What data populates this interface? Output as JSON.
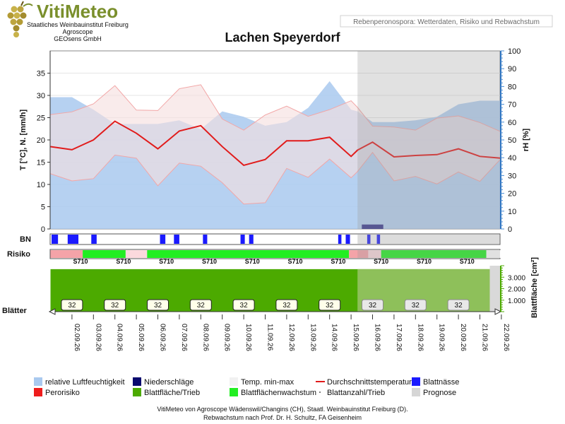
{
  "header": {
    "brand_title": "VitiMeteo",
    "brand_lines": [
      "Staatliches Weinbauinstitut Freiburg",
      "Agroscope",
      "GEOsens GmbH"
    ],
    "subtitle": "Rebenperonospora: Wetterdaten, Risiko und Rebwachstum",
    "title": "Lachen Speyerdorf"
  },
  "axes": {
    "left_label": "T [°C], N. [mm/h]",
    "right_label": "rH [%]",
    "leaf_area_label": "Blattfläche [cm²]",
    "left_ticks": [
      "0",
      "5",
      "10",
      "15",
      "20",
      "25",
      "30",
      "35"
    ],
    "right_ticks": [
      "0",
      "10",
      "20",
      "30",
      "40",
      "50",
      "60",
      "70",
      "80",
      "90",
      "100"
    ],
    "leaf_ticks": [
      "1.000",
      "2.000",
      "3.000"
    ]
  },
  "row_labels": {
    "bn": "BN",
    "risk": "Risiko",
    "leaves": "Blätter"
  },
  "legend": [
    {
      "key": "rh",
      "label": "relative Luftfeuchtigkeit",
      "color": "#a9c9ef"
    },
    {
      "key": "rain",
      "label": "Niederschläge",
      "color": "#0a0a6e"
    },
    {
      "key": "temp_range",
      "label": "Temp. min-max",
      "color": "#f1f1f1"
    },
    {
      "key": "avg_temp",
      "label": "Durchschnittstemperatur",
      "color": "#e11b1b"
    },
    {
      "key": "wetness",
      "label": "Blattnässe",
      "color": "#1a1aff"
    },
    {
      "key": "risk",
      "label": "Perorisiko",
      "color": "#ee1c1c"
    },
    {
      "key": "leaf_area",
      "label": "Blattfläche/Trieb",
      "color": "#4caa00"
    },
    {
      "key": "leaf_growth",
      "label": "Blattflächenwachstum",
      "color": "#22ee22"
    },
    {
      "key": "leaf_count",
      "label": "Blattanzahl/Trieb",
      "color": "#555555"
    },
    {
      "key": "forecast",
      "label": "Prognose",
      "color": "#d6d6d6"
    }
  ],
  "footer": [
    "VitiMeteo von Agroscope Wädenswil/Changins (CH), Staatl. Weinbauinstitut Freiburg (D).",
    "Rebwachstum nach Prof. Dr. H. Schultz, FA Geisenheim"
  ],
  "chart_data": {
    "type": "line",
    "dates": [
      "02.09.26",
      "03.09.26",
      "04.09.26",
      "05.09.26",
      "06.09.26",
      "07.09.26",
      "08.09.26",
      "09.09.26",
      "10.09.26",
      "11.09.26",
      "12.09.26",
      "13.09.26",
      "14.09.26",
      "15.09.26",
      "16.09.26",
      "17.09.26",
      "18.09.26",
      "19.09.26",
      "20.09.26",
      "21.09.26",
      "22.09.26"
    ],
    "forecast_start_day": 14.3,
    "temp_axis": {
      "min": 0,
      "max": 40
    },
    "rh_axis": {
      "min": 0,
      "max": 100
    },
    "leaf_area_axis": {
      "min": 0,
      "max": 4000
    },
    "series": [
      {
        "key": "rh",
        "name": "relative Luftfeuchtigkeit",
        "unit": "%",
        "x": [
          0,
          1,
          2,
          3,
          4,
          5,
          6,
          7,
          8,
          9,
          10,
          11,
          12,
          13,
          14,
          14.3,
          15,
          16,
          17,
          18,
          19,
          20,
          21
        ],
        "y": [
          74,
          74,
          67,
          59,
          59,
          59,
          61,
          56,
          66,
          63,
          58,
          60,
          68,
          83,
          67,
          66,
          60,
          60,
          61,
          63,
          70,
          72,
          72
        ]
      },
      {
        "key": "temp_max",
        "name": "Temp. max",
        "unit": "°C",
        "x": [
          0,
          1,
          2,
          3,
          4,
          5,
          6,
          7,
          8,
          9,
          10,
          11,
          12,
          13,
          14,
          14.3,
          15,
          16,
          17,
          18,
          19,
          20,
          21
        ],
        "y": [
          25.7,
          26.3,
          28.1,
          32.2,
          26.7,
          26.6,
          31.5,
          32.4,
          24.7,
          22.2,
          25.6,
          27.6,
          25.3,
          26.8,
          28.8,
          27.3,
          23.1,
          22.9,
          22.2,
          24.9,
          25.4,
          23.9,
          21.8
        ]
      },
      {
        "key": "temp_min",
        "name": "Temp. min",
        "unit": "°C",
        "x": [
          0,
          1,
          2,
          3,
          4,
          5,
          6,
          7,
          8,
          9,
          10,
          11,
          12,
          13,
          14,
          14.3,
          15,
          16,
          17,
          18,
          19,
          20,
          21
        ],
        "y": [
          12.4,
          10.8,
          11.3,
          16.6,
          15.9,
          9.7,
          14.8,
          14.1,
          10.4,
          5.6,
          5.9,
          13.6,
          11.6,
          15.7,
          11.5,
          12.9,
          17.2,
          10.8,
          11.8,
          10.1,
          12.8,
          10.7,
          15.9
        ]
      },
      {
        "key": "avg_temp",
        "name": "Durchschnittstemperatur",
        "unit": "°C",
        "x": [
          0,
          1,
          2,
          3,
          4,
          5,
          6,
          7,
          8,
          9,
          10,
          11,
          12,
          13,
          14,
          14.3,
          15,
          16,
          17,
          18,
          19,
          20,
          21
        ],
        "y": [
          18.5,
          17.8,
          20.0,
          24.2,
          21.5,
          18.0,
          22.0,
          23.2,
          18.5,
          14.3,
          15.6,
          19.8,
          19.8,
          20.6,
          16.3,
          17.7,
          19.5,
          16.2,
          16.5,
          16.7,
          18.0,
          16.3,
          15.9
        ]
      }
    ],
    "precipitation": {
      "unit": "mm/h",
      "bars": [
        {
          "x_start": 14.5,
          "x_end": 15.5,
          "value": 1
        }
      ]
    },
    "leaf_wetness": [
      [
        0.05,
        0.35
      ],
      [
        0.8,
        1.3
      ],
      [
        1.9,
        2.15
      ],
      [
        5.1,
        5.35
      ],
      [
        5.75,
        6.0
      ],
      [
        7.1,
        7.3
      ],
      [
        8.85,
        9.05
      ],
      [
        9.25,
        9.45
      ],
      [
        13.4,
        13.55
      ],
      [
        13.75,
        13.95
      ],
      [
        14.75,
        14.9
      ],
      [
        15.2,
        15.35
      ]
    ],
    "risk_segments": [
      {
        "start": 0,
        "end": 1.5,
        "level": "risk"
      },
      {
        "start": 1.5,
        "end": 3.5,
        "level": "growth"
      },
      {
        "start": 3.5,
        "end": 4.5,
        "level": "light-risk"
      },
      {
        "start": 4.5,
        "end": 13.9,
        "level": "growth"
      },
      {
        "start": 13.9,
        "end": 14.8,
        "level": "risk"
      },
      {
        "start": 14.8,
        "end": 15.4,
        "level": "light-risk"
      },
      {
        "start": 15.4,
        "end": 20.3,
        "level": "growth"
      },
      {
        "start": 20.3,
        "end": 21,
        "level": "none"
      }
    ],
    "phenology_stage": "S710",
    "leaf_area_per_shoot": 3700,
    "leaf_count_per_shoot": 32
  }
}
